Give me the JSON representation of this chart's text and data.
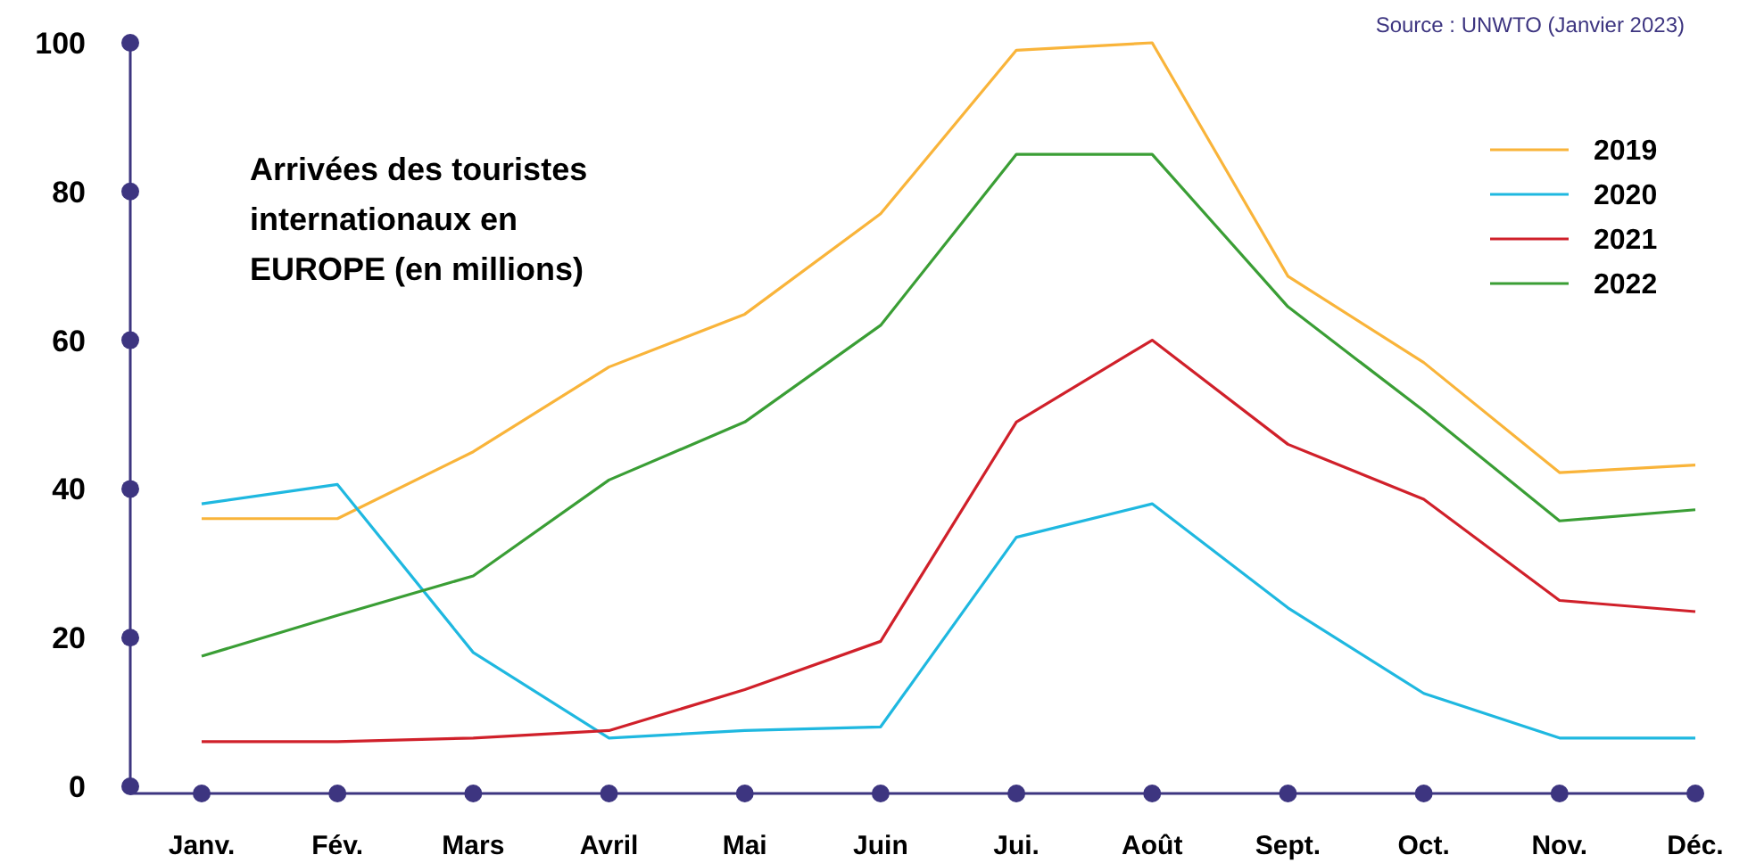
{
  "chart_data": {
    "type": "line",
    "title": "Arrivées des touristes internationaux en EUROPE (en millions)",
    "annotations": [
      "Source : UNWTO (Janvier 2023)"
    ],
    "categories": [
      "Janv.",
      "Fév.",
      "Mars",
      "Avril",
      "Mai",
      "Juin",
      "Jui.",
      "Août",
      "Sept.",
      "Oct.",
      "Nov.",
      "Déc."
    ],
    "series": [
      {
        "name": "2019",
        "color": "#f9b43a",
        "values": [
          36,
          36,
          45,
          56.4,
          63.5,
          77,
          99,
          100,
          68.6,
          57,
          42.2,
          43.2
        ]
      },
      {
        "name": "2020",
        "color": "#1fb8e0",
        "values": [
          38,
          40.6,
          18,
          6.5,
          7.5,
          8,
          33.5,
          38,
          24,
          12.5,
          6.5,
          6.5
        ]
      },
      {
        "name": "2021",
        "color": "#d0202a",
        "values": [
          6,
          6,
          6.5,
          7.5,
          13,
          19.5,
          49,
          60,
          46,
          38.6,
          25,
          23.5
        ]
      },
      {
        "name": "2022",
        "color": "#3a9e35",
        "values": [
          17.5,
          23,
          28.3,
          41.2,
          49,
          62,
          85,
          85,
          64.5,
          50.5,
          35.7,
          37.2
        ]
      }
    ],
    "ylim": [
      0,
      100
    ],
    "yticks": [
      0,
      20,
      40,
      60,
      80,
      100
    ],
    "grid": false,
    "legend": "top right",
    "marker": "none",
    "line_style": "solid"
  }
}
